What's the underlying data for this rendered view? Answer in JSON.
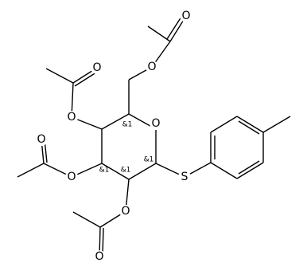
{
  "atoms": [
    "O",
    "O",
    "O",
    "O",
    "O",
    "O",
    "O",
    "O",
    "O",
    "S"
  ],
  "stereo": [
    "&1",
    "&1",
    "&1",
    "&1"
  ]
}
